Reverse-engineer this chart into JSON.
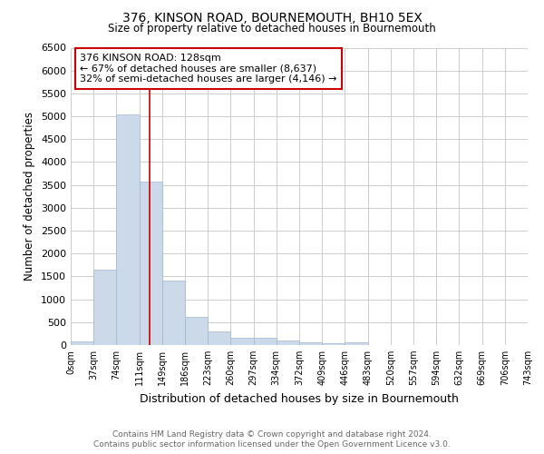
{
  "title": "376, KINSON ROAD, BOURNEMOUTH, BH10 5EX",
  "subtitle": "Size of property relative to detached houses in Bournemouth",
  "xlabel": "Distribution of detached houses by size in Bournemouth",
  "ylabel": "Number of detached properties",
  "bin_starts": [
    0,
    37,
    74,
    111,
    148,
    185,
    222,
    259,
    296,
    333,
    370,
    407,
    444,
    481,
    518,
    555,
    592,
    629,
    666,
    703
  ],
  "bin_width": 37,
  "bin_labels": [
    "0sqm",
    "37sqm",
    "74sqm",
    "111sqm",
    "149sqm",
    "186sqm",
    "223sqm",
    "260sqm",
    "297sqm",
    "334sqm",
    "372sqm",
    "409sqm",
    "446sqm",
    "483sqm",
    "520sqm",
    "557sqm",
    "594sqm",
    "632sqm",
    "669sqm",
    "706sqm",
    "743sqm"
  ],
  "bar_heights": [
    75,
    1650,
    5050,
    3580,
    1400,
    610,
    300,
    160,
    150,
    100,
    55,
    40,
    60,
    8,
    5,
    3,
    2,
    1,
    1,
    1
  ],
  "bar_color": "#ccd9e8",
  "bar_edge_color": "#9fb8d0",
  "red_line_x": 128,
  "red_line_color": "#cc0000",
  "ylim": [
    0,
    6500
  ],
  "yticks": [
    0,
    500,
    1000,
    1500,
    2000,
    2500,
    3000,
    3500,
    4000,
    4500,
    5000,
    5500,
    6000,
    6500
  ],
  "annotation_title": "376 KINSON ROAD: 128sqm",
  "annotation_line1": "← 67% of detached houses are smaller (8,637)",
  "annotation_line2": "32% of semi-detached houses are larger (4,146) →",
  "annotation_box_color": "#ffffff",
  "annotation_box_edge": "#cc0000",
  "footnote1": "Contains HM Land Registry data © Crown copyright and database right 2024.",
  "footnote2": "Contains public sector information licensed under the Open Government Licence v3.0.",
  "grid_color": "#cccccc",
  "background_color": "#ffffff"
}
